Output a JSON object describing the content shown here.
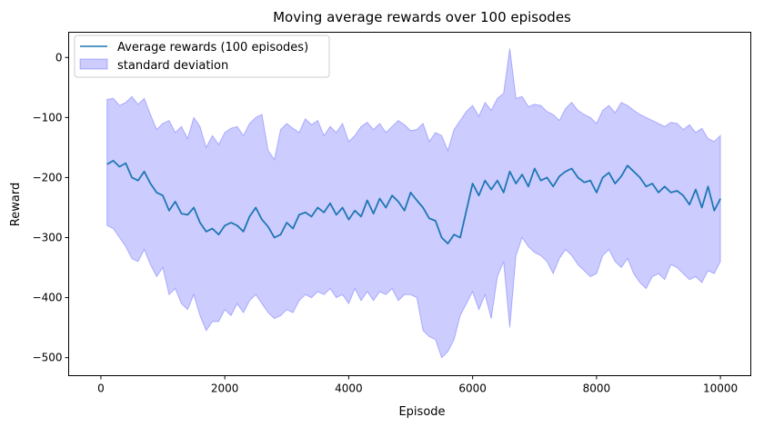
{
  "chart_data": {
    "type": "line",
    "title": "Moving average rewards over 100 episodes",
    "xlabel": "Episode",
    "ylabel": "Reward",
    "xlim": [
      -520,
      10490
    ],
    "ylim": [
      -530,
      42
    ],
    "xticks": [
      0,
      2000,
      4000,
      6000,
      8000,
      10000
    ],
    "yticks": [
      0,
      -100,
      -200,
      -300,
      -400,
      -500
    ],
    "xtick_labels": [
      "0",
      "2000",
      "4000",
      "6000",
      "8000",
      "10000"
    ],
    "ytick_labels": [
      "0",
      "−100",
      "−200",
      "−300",
      "−400",
      "−500"
    ],
    "legend_position": "top-left",
    "grid": false,
    "series": [
      {
        "name": "Average rewards (100 episodes)",
        "kind": "line",
        "color": "#1f77b4",
        "x": [
          100,
          200,
          300,
          400,
          500,
          600,
          700,
          800,
          900,
          1000,
          1100,
          1200,
          1300,
          1400,
          1500,
          1600,
          1700,
          1800,
          1900,
          2000,
          2100,
          2200,
          2300,
          2400,
          2500,
          2600,
          2700,
          2800,
          2900,
          3000,
          3100,
          3200,
          3300,
          3400,
          3500,
          3600,
          3700,
          3800,
          3900,
          4000,
          4100,
          4200,
          4300,
          4400,
          4500,
          4600,
          4700,
          4800,
          4900,
          5000,
          5100,
          5200,
          5300,
          5400,
          5500,
          5600,
          5700,
          5800,
          5900,
          6000,
          6100,
          6200,
          6300,
          6400,
          6500,
          6600,
          6700,
          6800,
          6900,
          7000,
          7100,
          7200,
          7300,
          7400,
          7500,
          7600,
          7700,
          7800,
          7900,
          8000,
          8100,
          8200,
          8300,
          8400,
          8500,
          8600,
          8700,
          8800,
          8900,
          9000,
          9100,
          9200,
          9300,
          9400,
          9500,
          9600,
          9700,
          9800,
          9900,
          10000
        ],
        "y": [
          -178,
          -172,
          -182,
          -176,
          -200,
          -205,
          -190,
          -210,
          -225,
          -230,
          -255,
          -240,
          -260,
          -262,
          -250,
          -275,
          -290,
          -285,
          -295,
          -280,
          -275,
          -280,
          -290,
          -265,
          -250,
          -270,
          -282,
          -300,
          -295,
          -275,
          -285,
          -262,
          -258,
          -265,
          -250,
          -258,
          -243,
          -262,
          -250,
          -270,
          -255,
          -265,
          -238,
          -260,
          -235,
          -250,
          -230,
          -240,
          -255,
          -225,
          -238,
          -250,
          -268,
          -272,
          -300,
          -310,
          -295,
          -300,
          -255,
          -210,
          -230,
          -205,
          -220,
          -205,
          -225,
          -190,
          -210,
          -195,
          -215,
          -185,
          -205,
          -200,
          -215,
          -198,
          -190,
          -185,
          -200,
          -208,
          -205,
          -225,
          -200,
          -192,
          -210,
          -198,
          -180,
          -190,
          -200,
          -215,
          -210,
          -225,
          -215,
          -225,
          -222,
          -230,
          -245,
          -220,
          -250,
          -215,
          -255,
          -235
        ]
      },
      {
        "name": "standard deviation",
        "kind": "band",
        "color": "#0000ff",
        "opacity": 0.2,
        "x": [
          100,
          200,
          300,
          400,
          500,
          600,
          700,
          800,
          900,
          1000,
          1100,
          1200,
          1300,
          1400,
          1500,
          1600,
          1700,
          1800,
          1900,
          2000,
          2100,
          2200,
          2300,
          2400,
          2500,
          2600,
          2700,
          2800,
          2900,
          3000,
          3100,
          3200,
          3300,
          3400,
          3500,
          3600,
          3700,
          3800,
          3900,
          4000,
          4100,
          4200,
          4300,
          4400,
          4500,
          4600,
          4700,
          4800,
          4900,
          5000,
          5100,
          5200,
          5300,
          5400,
          5500,
          5600,
          5700,
          5800,
          5900,
          6000,
          6100,
          6200,
          6300,
          6400,
          6500,
          6600,
          6700,
          6800,
          6900,
          7000,
          7100,
          7200,
          7300,
          7400,
          7500,
          7600,
          7700,
          7800,
          7900,
          8000,
          8100,
          8200,
          8300,
          8400,
          8500,
          8600,
          8700,
          8800,
          8900,
          9000,
          9100,
          9200,
          9300,
          9400,
          9500,
          9600,
          9700,
          9800,
          9900,
          10000
        ],
        "upper": [
          -70,
          -68,
          -80,
          -75,
          -65,
          -78,
          -68,
          -95,
          -120,
          -110,
          -105,
          -125,
          -115,
          -135,
          -100,
          -115,
          -150,
          -130,
          -145,
          -125,
          -118,
          -115,
          -130,
          -110,
          -100,
          -95,
          -155,
          -170,
          -120,
          -110,
          -118,
          -125,
          -102,
          -112,
          -105,
          -130,
          -115,
          -125,
          -110,
          -140,
          -130,
          -115,
          -108,
          -120,
          -110,
          -125,
          -115,
          -105,
          -112,
          -122,
          -120,
          -110,
          -140,
          -125,
          -130,
          -155,
          -120,
          -105,
          -90,
          -80,
          -98,
          -75,
          -88,
          -68,
          -60,
          15,
          -68,
          -65,
          -82,
          -78,
          -80,
          -90,
          -95,
          -105,
          -85,
          -75,
          -88,
          -95,
          -100,
          -110,
          -88,
          -80,
          -92,
          -75,
          -80,
          -88,
          -95,
          -100,
          -105,
          -110,
          -115,
          -108,
          -110,
          -120,
          -112,
          -125,
          -118,
          -135,
          -140,
          -130
        ],
        "lower": [
          -280,
          -285,
          -300,
          -315,
          -335,
          -340,
          -320,
          -345,
          -365,
          -350,
          -395,
          -385,
          -410,
          -420,
          -395,
          -430,
          -455,
          -440,
          -440,
          -420,
          -430,
          -410,
          -425,
          -405,
          -395,
          -410,
          -425,
          -435,
          -430,
          -420,
          -425,
          -405,
          -395,
          -400,
          -390,
          -395,
          -385,
          -400,
          -395,
          -410,
          -385,
          -405,
          -390,
          -405,
          -390,
          -395,
          -385,
          -405,
          -395,
          -395,
          -400,
          -455,
          -465,
          -470,
          -500,
          -490,
          -470,
          -430,
          -410,
          -390,
          -420,
          -395,
          -435,
          -365,
          -340,
          -450,
          -330,
          -300,
          -315,
          -325,
          -330,
          -340,
          -360,
          -335,
          -320,
          -330,
          -345,
          -355,
          -365,
          -360,
          -330,
          -320,
          -340,
          -350,
          -335,
          -360,
          -375,
          -385,
          -365,
          -360,
          -370,
          -345,
          -350,
          -360,
          -370,
          -365,
          -375,
          -355,
          -360,
          -340
        ]
      }
    ]
  }
}
